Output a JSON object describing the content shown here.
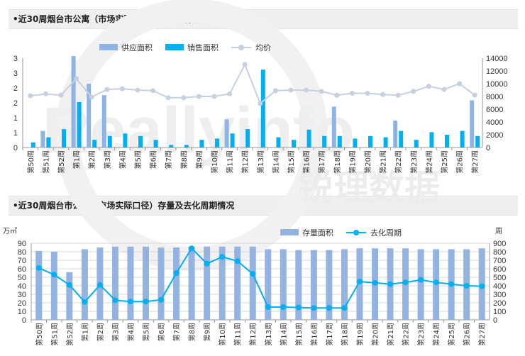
{
  "section1": {
    "title": "•近30周烟台市公寓（市场实际口径）供销价情况"
  },
  "section2": {
    "title": "•近30周烟台市公寓（市场实际口径）存量及去化周期情况"
  },
  "watermark": {
    "brand": "Reallyinfo",
    "chinese": "锐理数据"
  },
  "colors": {
    "supply": "#8fb4e3",
    "sales": "#00b0f0",
    "price": "#c5d0e0",
    "stock": "#95b3e0",
    "cycle": "#00b0f0"
  },
  "chart_data": [
    {
      "type": "bar",
      "categories": [
        "第50周",
        "第51周",
        "第52周",
        "第1周",
        "第2周",
        "第3周",
        "第4周",
        "第5周",
        "第6周",
        "第7周",
        "第8周",
        "第9周",
        "第10周",
        "第11周",
        "第12周",
        "第13周",
        "第14周",
        "第15周",
        "第16周",
        "第17周",
        "第18周",
        "第19周",
        "第20周",
        "第21周",
        "第22周",
        "第23周",
        "第24周",
        "第25周",
        "第26周",
        "第27周"
      ],
      "left_ticks": [
        "0",
        "1",
        "1",
        "2",
        "2",
        "3",
        "3"
      ],
      "right_ticks": [
        "0",
        "2000",
        "4000",
        "6000",
        "8000",
        "10000",
        "12000",
        "14000"
      ],
      "ylim_left": [
        0,
        3.5
      ],
      "ylim_right": [
        0,
        14000
      ],
      "series": [
        {
          "name": "供应面积",
          "kind": "bar",
          "axis": "left",
          "values": [
            0,
            0.65,
            0,
            3.58,
            2.5,
            2.05,
            0,
            0,
            0,
            0,
            0,
            0,
            0,
            1.1,
            0,
            0,
            0,
            0,
            0,
            0,
            1.6,
            0,
            0,
            0,
            1.05,
            0,
            0,
            0,
            0,
            1.85
          ]
        },
        {
          "name": "销售面积",
          "kind": "bar",
          "axis": "left",
          "values": [
            0.2,
            0.4,
            0.72,
            1.78,
            0.3,
            0.45,
            0.55,
            0.45,
            0.3,
            0.1,
            0.1,
            0.3,
            0.35,
            0.55,
            0.72,
            3.05,
            0.4,
            0.3,
            0.7,
            0.45,
            0.45,
            0.35,
            0.45,
            0.4,
            0.65,
            0.3,
            0.6,
            0.5,
            0.65,
            0.45
          ]
        },
        {
          "name": "均价",
          "kind": "line",
          "axis": "right",
          "values": [
            8100,
            8400,
            8200,
            10800,
            7900,
            9100,
            9200,
            9000,
            8900,
            7800,
            7800,
            8000,
            8000,
            8400,
            13000,
            6900,
            8900,
            9000,
            9000,
            8800,
            8200,
            8500,
            8500,
            8300,
            8200,
            8800,
            9600,
            9100,
            10000,
            8200
          ]
        }
      ]
    },
    {
      "type": "bar",
      "categories": [
        "第50周",
        "第51周",
        "第52周",
        "第1周",
        "第2周",
        "第3周",
        "第4周",
        "第5周",
        "第6周",
        "第7周",
        "第8周",
        "第9周",
        "第10周",
        "第11周",
        "第12周",
        "第13周",
        "第14周",
        "第15周",
        "第16周",
        "第17周",
        "第18周",
        "第19周",
        "第20周",
        "第21周",
        "第22周",
        "第23周",
        "第24周",
        "第25周",
        "第26周",
        "第27周"
      ],
      "left_unit": "万㎡",
      "right_unit": "周",
      "left_ticks": [
        "0",
        "10",
        "20",
        "30",
        "40",
        "50",
        "60",
        "70",
        "80",
        "90"
      ],
      "right_ticks": [
        "0",
        "100",
        "200",
        "300",
        "400",
        "500",
        "600",
        "700",
        "800",
        "900"
      ],
      "ylim_left": [
        0,
        90
      ],
      "ylim_right": [
        0,
        900
      ],
      "series": [
        {
          "name": "存量面积",
          "kind": "bar",
          "axis": "left",
          "values": [
            81,
            80,
            56,
            83,
            85,
            86,
            86,
            86,
            85,
            85,
            86,
            86,
            86,
            86,
            86,
            83,
            83,
            82,
            82,
            82,
            83,
            84,
            84,
            84,
            84,
            83,
            83,
            83,
            83,
            84
          ]
        },
        {
          "name": "去化周期",
          "kind": "line",
          "axis": "right",
          "values": [
            610,
            530,
            410,
            210,
            410,
            230,
            215,
            215,
            235,
            550,
            840,
            660,
            740,
            690,
            540,
            150,
            150,
            145,
            140,
            140,
            140,
            450,
            435,
            420,
            440,
            470,
            440,
            420,
            400,
            395
          ]
        }
      ]
    }
  ]
}
